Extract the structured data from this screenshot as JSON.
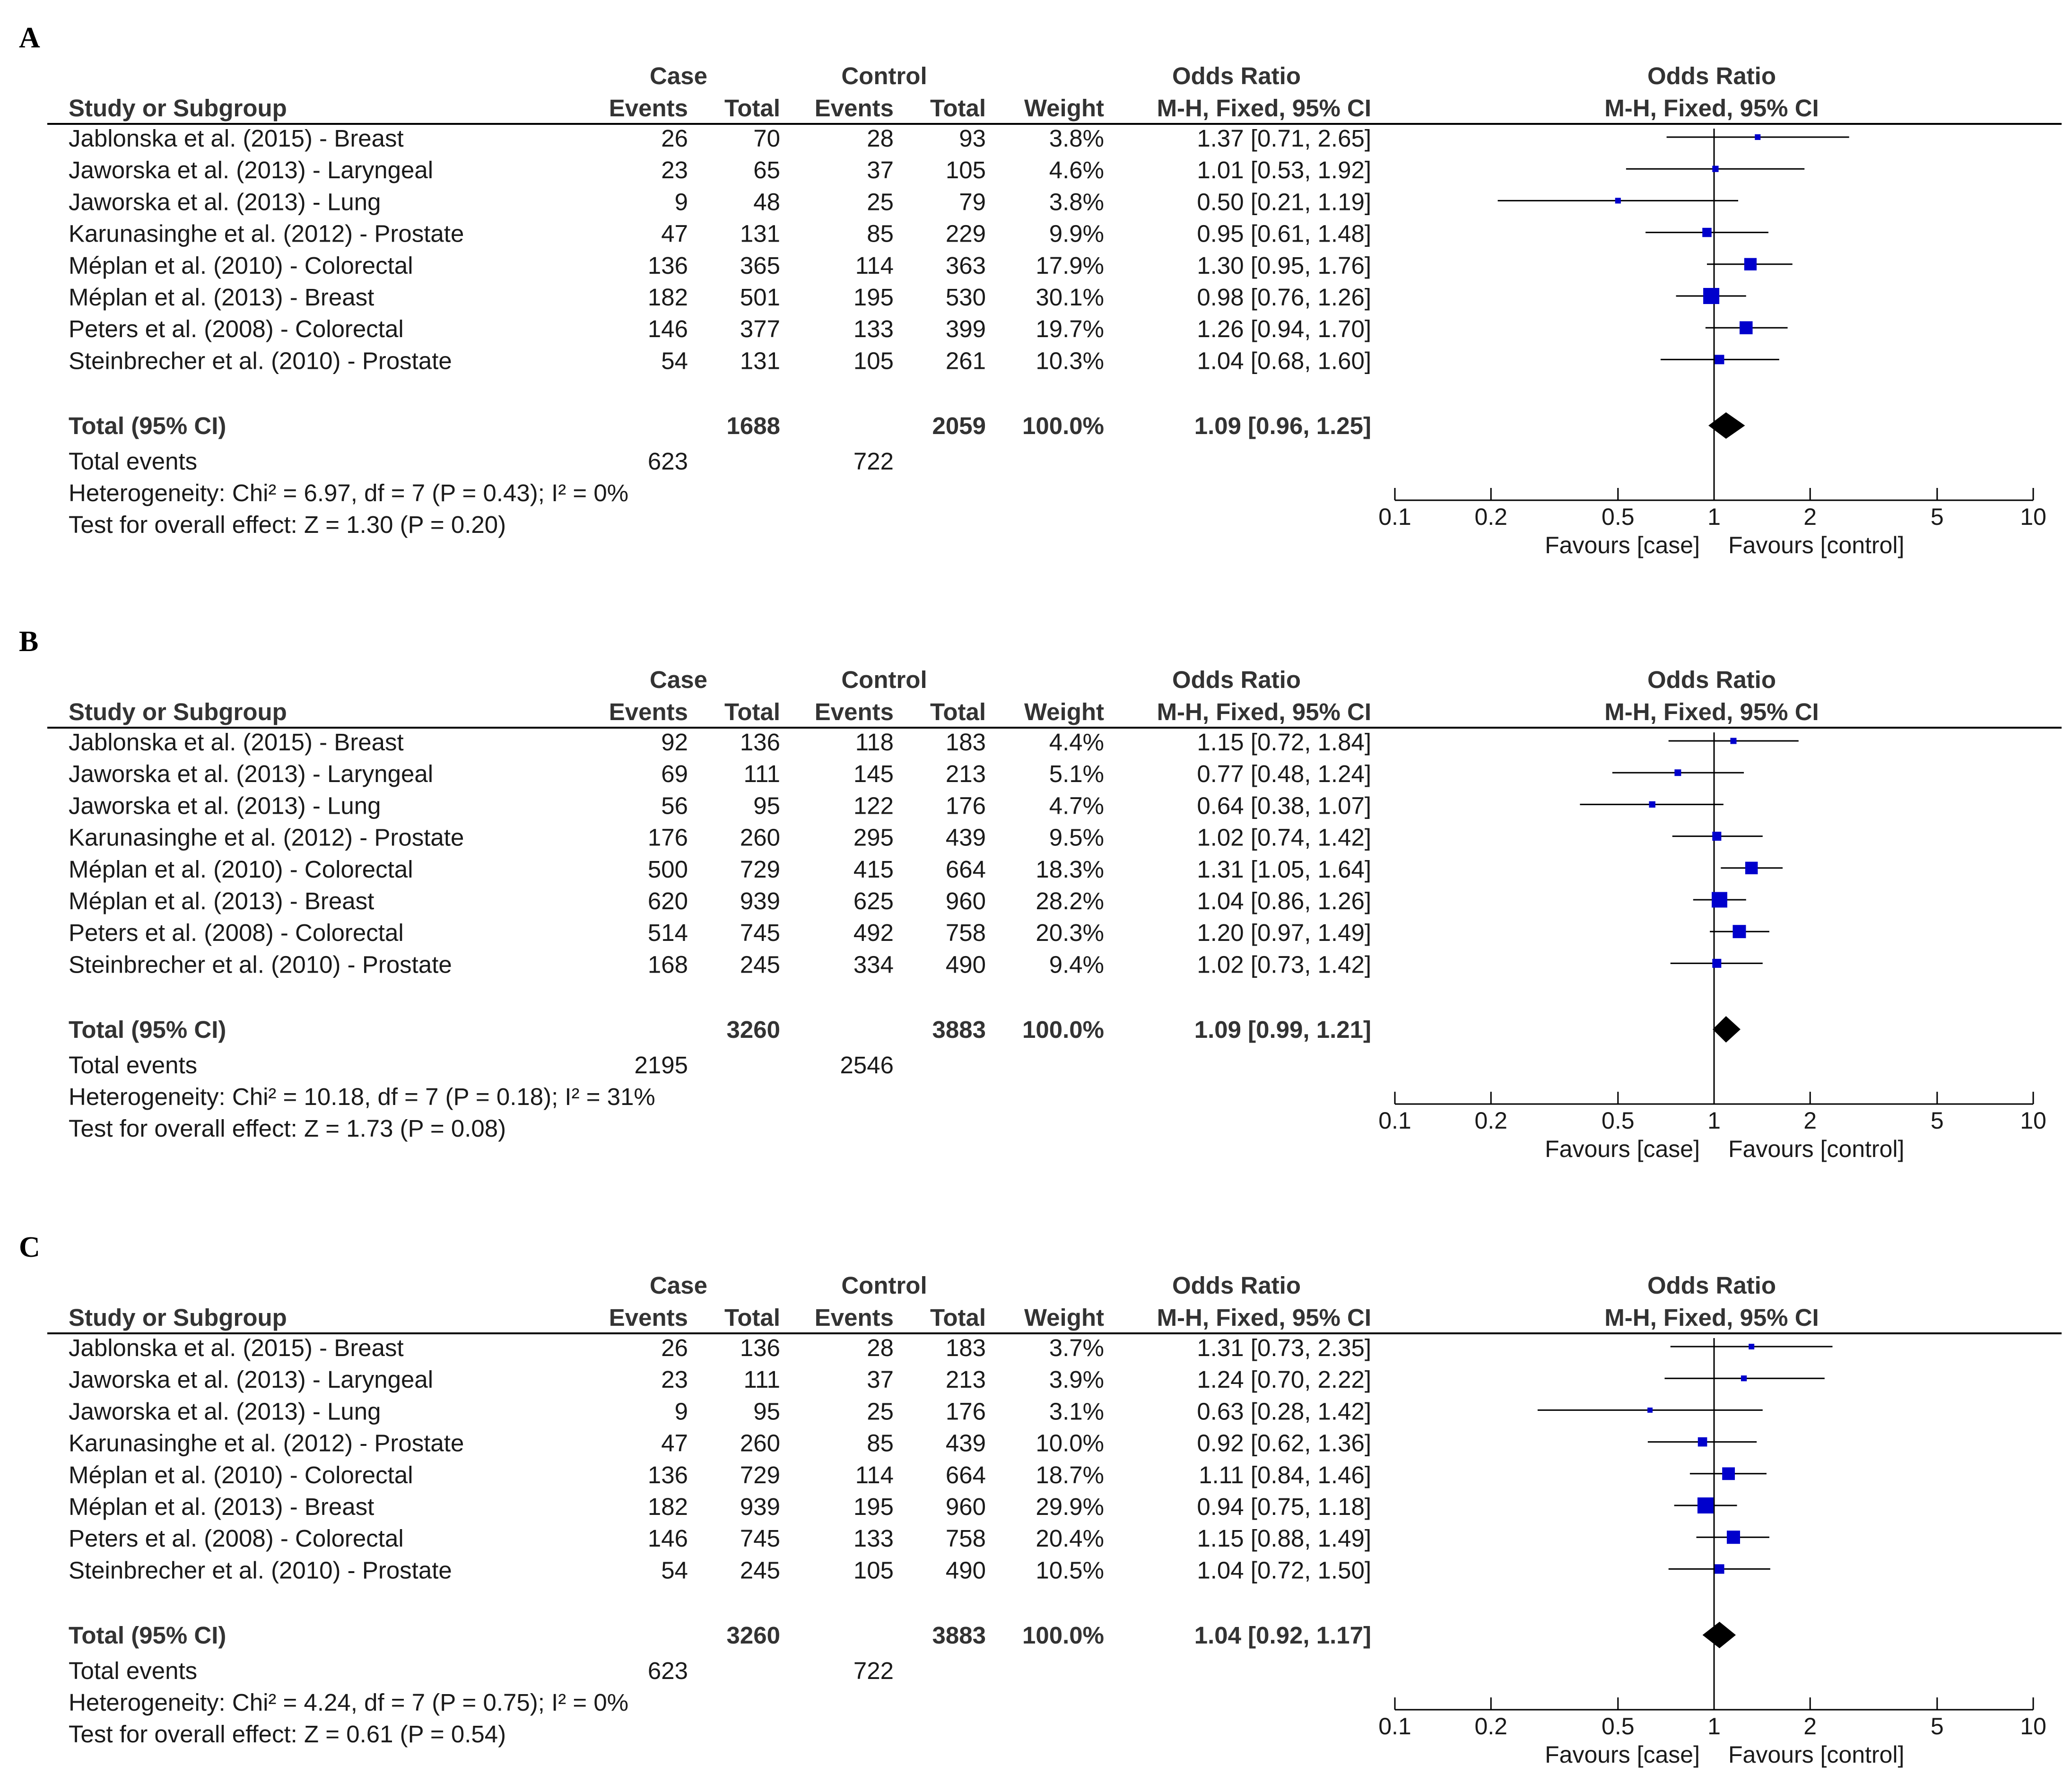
{
  "chart_data": [
    {
      "type": "forest",
      "panel_label": "A",
      "headers": {
        "case": "Case",
        "control": "Control",
        "odds_ratio_col": "Odds Ratio",
        "odds_ratio_plot": "Odds Ratio",
        "study": "Study or Subgroup",
        "events": "Events",
        "total": "Total",
        "weight": "Weight",
        "method_col": "M-H, Fixed, 95% CI",
        "method_plot": "M-H, Fixed, 95% CI"
      },
      "studies": [
        {
          "name": "Jablonska et al. (2015) - Breast",
          "case_events": "26",
          "case_total": "70",
          "ctrl_events": "28",
          "ctrl_total": "93",
          "weight": "3.8%",
          "ci_text": "1.37 [0.71, 2.65]",
          "or": 1.37,
          "lo": 0.71,
          "hi": 2.65,
          "w": 3.8
        },
        {
          "name": "Jaworska et al. (2013) - Laryngeal",
          "case_events": "23",
          "case_total": "65",
          "ctrl_events": "37",
          "ctrl_total": "105",
          "weight": "4.6%",
          "ci_text": "1.01 [0.53, 1.92]",
          "or": 1.01,
          "lo": 0.53,
          "hi": 1.92,
          "w": 4.6
        },
        {
          "name": "Jaworska et al. (2013) - Lung",
          "case_events": "9",
          "case_total": "48",
          "ctrl_events": "25",
          "ctrl_total": "79",
          "weight": "3.8%",
          "ci_text": "0.50 [0.21, 1.19]",
          "or": 0.5,
          "lo": 0.21,
          "hi": 1.19,
          "w": 3.8
        },
        {
          "name": "Karunasinghe et al. (2012) - Prostate",
          "case_events": "47",
          "case_total": "131",
          "ctrl_events": "85",
          "ctrl_total": "229",
          "weight": "9.9%",
          "ci_text": "0.95 [0.61, 1.48]",
          "or": 0.95,
          "lo": 0.61,
          "hi": 1.48,
          "w": 9.9
        },
        {
          "name": "Méplan et al. (2010) - Colorectal",
          "case_events": "136",
          "case_total": "365",
          "ctrl_events": "114",
          "ctrl_total": "363",
          "weight": "17.9%",
          "ci_text": "1.30 [0.95, 1.76]",
          "or": 1.3,
          "lo": 0.95,
          "hi": 1.76,
          "w": 17.9
        },
        {
          "name": "Méplan et al. (2013) - Breast",
          "case_events": "182",
          "case_total": "501",
          "ctrl_events": "195",
          "ctrl_total": "530",
          "weight": "30.1%",
          "ci_text": "0.98 [0.76, 1.26]",
          "or": 0.98,
          "lo": 0.76,
          "hi": 1.26,
          "w": 30.1
        },
        {
          "name": "Peters et al. (2008) - Colorectal",
          "case_events": "146",
          "case_total": "377",
          "ctrl_events": "133",
          "ctrl_total": "399",
          "weight": "19.7%",
          "ci_text": "1.26 [0.94, 1.70]",
          "or": 1.26,
          "lo": 0.94,
          "hi": 1.7,
          "w": 19.7
        },
        {
          "name": "Steinbrecher et al. (2010) - Prostate",
          "case_events": "54",
          "case_total": "131",
          "ctrl_events": "105",
          "ctrl_total": "261",
          "weight": "10.3%",
          "ci_text": "1.04 [0.68, 1.60]",
          "or": 1.04,
          "lo": 0.68,
          "hi": 1.6,
          "w": 10.3
        }
      ],
      "total": {
        "label": "Total (95% CI)",
        "case_total": "1688",
        "ctrl_total": "2059",
        "weight": "100.0%",
        "ci_text": "1.09 [0.96, 1.25]",
        "or": 1.09,
        "lo": 0.96,
        "hi": 1.25
      },
      "total_events": {
        "label": "Total events",
        "case": "623",
        "ctrl": "722"
      },
      "heterogeneity": "Heterogeneity: Chi² = 6.97, df = 7 (P = 0.43); I² = 0%",
      "overall_effect": "Test for overall effect: Z = 1.30 (P = 0.20)",
      "axis": {
        "scale": "log",
        "ticks": [
          "0.1",
          "0.2",
          "0.5",
          "1",
          "2",
          "5",
          "10"
        ],
        "left_label": "Favours [case]",
        "right_label": "Favours [control]"
      }
    },
    {
      "type": "forest",
      "panel_label": "B",
      "headers": {
        "case": "Case",
        "control": "Control",
        "odds_ratio_col": "Odds Ratio",
        "odds_ratio_plot": "Odds Ratio",
        "study": "Study or Subgroup",
        "events": "Events",
        "total": "Total",
        "weight": "Weight",
        "method_col": "M-H, Fixed, 95% CI",
        "method_plot": "M-H, Fixed, 95% CI"
      },
      "studies": [
        {
          "name": "Jablonska et al. (2015) - Breast",
          "case_events": "92",
          "case_total": "136",
          "ctrl_events": "118",
          "ctrl_total": "183",
          "weight": "4.4%",
          "ci_text": "1.15 [0.72, 1.84]",
          "or": 1.15,
          "lo": 0.72,
          "hi": 1.84,
          "w": 4.4
        },
        {
          "name": "Jaworska et al. (2013) - Laryngeal",
          "case_events": "69",
          "case_total": "111",
          "ctrl_events": "145",
          "ctrl_total": "213",
          "weight": "5.1%",
          "ci_text": "0.77 [0.48, 1.24]",
          "or": 0.77,
          "lo": 0.48,
          "hi": 1.24,
          "w": 5.1
        },
        {
          "name": "Jaworska et al. (2013) - Lung",
          "case_events": "56",
          "case_total": "95",
          "ctrl_events": "122",
          "ctrl_total": "176",
          "weight": "4.7%",
          "ci_text": "0.64 [0.38, 1.07]",
          "or": 0.64,
          "lo": 0.38,
          "hi": 1.07,
          "w": 4.7
        },
        {
          "name": "Karunasinghe et al. (2012) - Prostate",
          "case_events": "176",
          "case_total": "260",
          "ctrl_events": "295",
          "ctrl_total": "439",
          "weight": "9.5%",
          "ci_text": "1.02 [0.74, 1.42]",
          "or": 1.02,
          "lo": 0.74,
          "hi": 1.42,
          "w": 9.5
        },
        {
          "name": "Méplan et al. (2010) - Colorectal",
          "case_events": "500",
          "case_total": "729",
          "ctrl_events": "415",
          "ctrl_total": "664",
          "weight": "18.3%",
          "ci_text": "1.31 [1.05, 1.64]",
          "or": 1.31,
          "lo": 1.05,
          "hi": 1.64,
          "w": 18.3
        },
        {
          "name": "Méplan et al. (2013) - Breast",
          "case_events": "620",
          "case_total": "939",
          "ctrl_events": "625",
          "ctrl_total": "960",
          "weight": "28.2%",
          "ci_text": "1.04 [0.86, 1.26]",
          "or": 1.04,
          "lo": 0.86,
          "hi": 1.26,
          "w": 28.2
        },
        {
          "name": "Peters et al. (2008) - Colorectal",
          "case_events": "514",
          "case_total": "745",
          "ctrl_events": "492",
          "ctrl_total": "758",
          "weight": "20.3%",
          "ci_text": "1.20 [0.97, 1.49]",
          "or": 1.2,
          "lo": 0.97,
          "hi": 1.49,
          "w": 20.3
        },
        {
          "name": "Steinbrecher et al. (2010) - Prostate",
          "case_events": "168",
          "case_total": "245",
          "ctrl_events": "334",
          "ctrl_total": "490",
          "weight": "9.4%",
          "ci_text": "1.02 [0.73, 1.42]",
          "or": 1.02,
          "lo": 0.73,
          "hi": 1.42,
          "w": 9.4
        }
      ],
      "total": {
        "label": "Total (95% CI)",
        "case_total": "3260",
        "ctrl_total": "3883",
        "weight": "100.0%",
        "ci_text": "1.09 [0.99, 1.21]",
        "or": 1.09,
        "lo": 0.99,
        "hi": 1.21
      },
      "total_events": {
        "label": "Total events",
        "case": "2195",
        "ctrl": "2546"
      },
      "heterogeneity": "Heterogeneity: Chi² = 10.18, df = 7 (P = 0.18); I² = 31%",
      "overall_effect": "Test for overall effect: Z = 1.73 (P = 0.08)",
      "axis": {
        "scale": "log",
        "ticks": [
          "0.1",
          "0.2",
          "0.5",
          "1",
          "2",
          "5",
          "10"
        ],
        "left_label": "Favours [case]",
        "right_label": "Favours [control]"
      }
    },
    {
      "type": "forest",
      "panel_label": "C",
      "headers": {
        "case": "Case",
        "control": "Control",
        "odds_ratio_col": "Odds Ratio",
        "odds_ratio_plot": "Odds Ratio",
        "study": "Study or Subgroup",
        "events": "Events",
        "total": "Total",
        "weight": "Weight",
        "method_col": "M-H, Fixed, 95% CI",
        "method_plot": "M-H, Fixed, 95% CI"
      },
      "studies": [
        {
          "name": "Jablonska et al. (2015) - Breast",
          "case_events": "26",
          "case_total": "136",
          "ctrl_events": "28",
          "ctrl_total": "183",
          "weight": "3.7%",
          "ci_text": "1.31 [0.73, 2.35]",
          "or": 1.31,
          "lo": 0.73,
          "hi": 2.35,
          "w": 3.7
        },
        {
          "name": "Jaworska et al. (2013) - Laryngeal",
          "case_events": "23",
          "case_total": "111",
          "ctrl_events": "37",
          "ctrl_total": "213",
          "weight": "3.9%",
          "ci_text": "1.24 [0.70, 2.22]",
          "or": 1.24,
          "lo": 0.7,
          "hi": 2.22,
          "w": 3.9
        },
        {
          "name": "Jaworska et al. (2013) - Lung",
          "case_events": "9",
          "case_total": "95",
          "ctrl_events": "25",
          "ctrl_total": "176",
          "weight": "3.1%",
          "ci_text": "0.63 [0.28, 1.42]",
          "or": 0.63,
          "lo": 0.28,
          "hi": 1.42,
          "w": 3.1
        },
        {
          "name": "Karunasinghe et al. (2012) - Prostate",
          "case_events": "47",
          "case_total": "260",
          "ctrl_events": "85",
          "ctrl_total": "439",
          "weight": "10.0%",
          "ci_text": "0.92 [0.62, 1.36]",
          "or": 0.92,
          "lo": 0.62,
          "hi": 1.36,
          "w": 10.0
        },
        {
          "name": "Méplan et al. (2010) - Colorectal",
          "case_events": "136",
          "case_total": "729",
          "ctrl_events": "114",
          "ctrl_total": "664",
          "weight": "18.7%",
          "ci_text": "1.11 [0.84, 1.46]",
          "or": 1.11,
          "lo": 0.84,
          "hi": 1.46,
          "w": 18.7
        },
        {
          "name": "Méplan et al. (2013) - Breast",
          "case_events": "182",
          "case_total": "939",
          "ctrl_events": "195",
          "ctrl_total": "960",
          "weight": "29.9%",
          "ci_text": "0.94 [0.75, 1.18]",
          "or": 0.94,
          "lo": 0.75,
          "hi": 1.18,
          "w": 29.9
        },
        {
          "name": "Peters et al. (2008) - Colorectal",
          "case_events": "146",
          "case_total": "745",
          "ctrl_events": "133",
          "ctrl_total": "758",
          "weight": "20.4%",
          "ci_text": "1.15 [0.88, 1.49]",
          "or": 1.15,
          "lo": 0.88,
          "hi": 1.49,
          "w": 20.4
        },
        {
          "name": "Steinbrecher et al. (2010) - Prostate",
          "case_events": "54",
          "case_total": "245",
          "ctrl_events": "105",
          "ctrl_total": "490",
          "weight": "10.5%",
          "ci_text": "1.04 [0.72, 1.50]",
          "or": 1.04,
          "lo": 0.72,
          "hi": 1.5,
          "w": 10.5
        }
      ],
      "total": {
        "label": "Total (95% CI)",
        "case_total": "3260",
        "ctrl_total": "3883",
        "weight": "100.0%",
        "ci_text": "1.04 [0.92, 1.17]",
        "or": 1.04,
        "lo": 0.92,
        "hi": 1.17
      },
      "total_events": {
        "label": "Total events",
        "case": "623",
        "ctrl": "722"
      },
      "heterogeneity": "Heterogeneity: Chi² = 4.24, df = 7 (P = 0.75); I² = 0%",
      "overall_effect": "Test for overall effect: Z = 0.61 (P = 0.54)",
      "axis": {
        "scale": "log",
        "ticks": [
          "0.1",
          "0.2",
          "0.5",
          "1",
          "2",
          "5",
          "10"
        ],
        "left_label": "Favours [case]",
        "right_label": "Favours [control]"
      }
    }
  ],
  "colors": {
    "marker": "#0000cc",
    "text": "#1a1a1a",
    "header": "#333333",
    "line": "#000000"
  }
}
